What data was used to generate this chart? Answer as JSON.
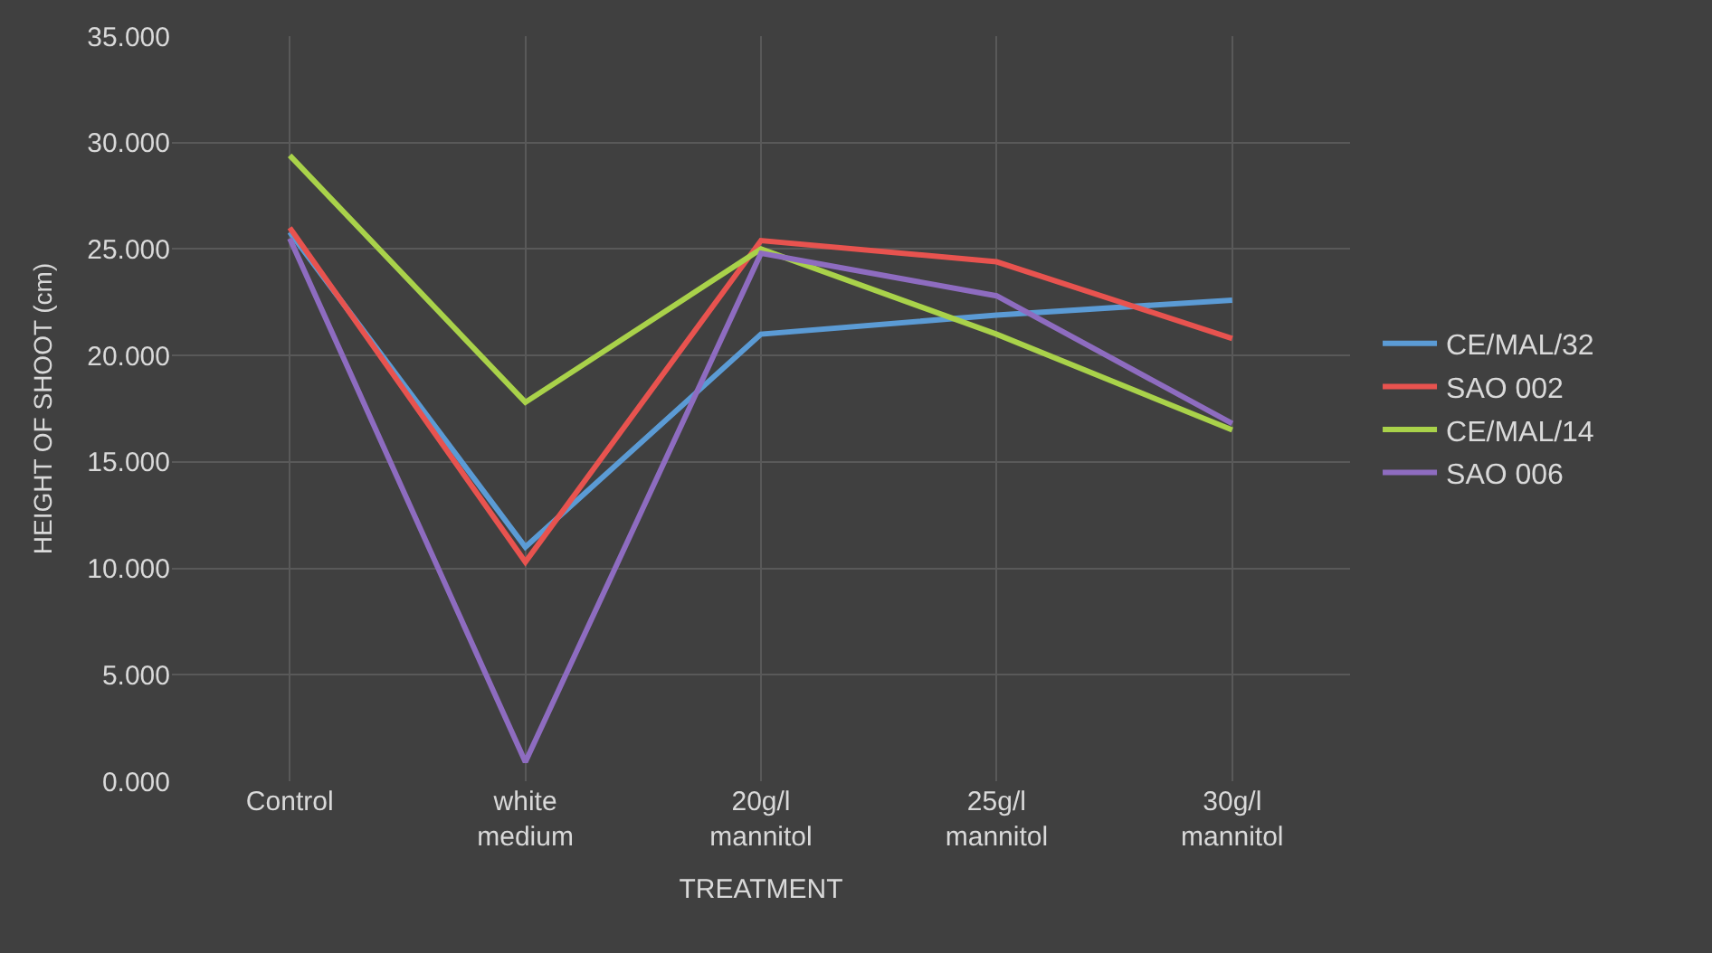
{
  "chart_data": {
    "type": "line",
    "xlabel": "TREATMENT",
    "ylabel": "HEIGHT OF SHOOT (cm)",
    "categories": [
      "Control",
      "white medium",
      "20g/l mannitol",
      "25g/l mannitol",
      "30g/l mannitol"
    ],
    "series": [
      {
        "name": "CE/MAL/32",
        "color": "#5b9bd5",
        "values": [
          25.8,
          11.0,
          21.0,
          21.9,
          22.6
        ]
      },
      {
        "name": "SAO 002",
        "color": "#e8534f",
        "values": [
          26.0,
          10.3,
          25.4,
          24.4,
          20.8
        ]
      },
      {
        "name": "CE/MAL/14",
        "color": "#a9d24a",
        "values": [
          29.4,
          17.8,
          25.0,
          21.0,
          16.5
        ]
      },
      {
        "name": "SAO 006",
        "color": "#8e6cc0",
        "values": [
          25.5,
          0.9,
          24.8,
          22.8,
          16.8
        ]
      }
    ],
    "ylim": [
      0,
      35
    ],
    "yticks": [
      {
        "value": 0,
        "label": "0.000"
      },
      {
        "value": 5,
        "label": "5.000"
      },
      {
        "value": 10,
        "label": "10.000"
      },
      {
        "value": 15,
        "label": "15.000"
      },
      {
        "value": 20,
        "label": "20.000"
      },
      {
        "value": 25,
        "label": "25.000"
      },
      {
        "value": 30,
        "label": "30.000"
      },
      {
        "value": 35,
        "label": "35.000"
      }
    ],
    "grid": true,
    "legend": "right",
    "marker": "none",
    "line_style": "solid"
  }
}
